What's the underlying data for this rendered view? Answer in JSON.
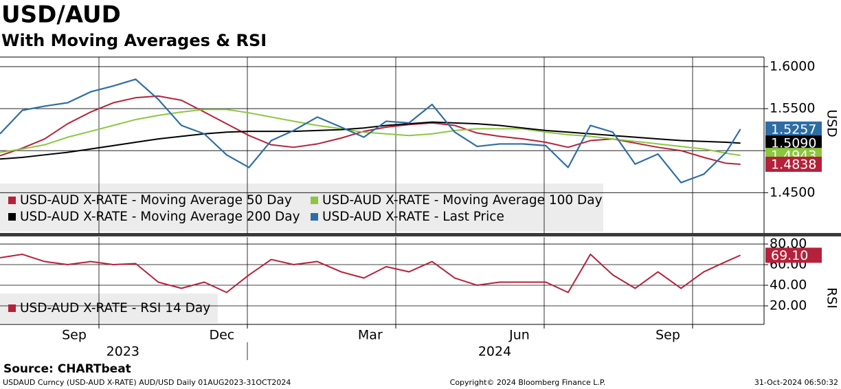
{
  "chart_data": [
    {
      "type": "line",
      "title": "USD/AUD",
      "subtitle": "With Moving Averages & RSI",
      "y_label": "USD",
      "x": [
        "2023-08-01",
        "2023-08-15",
        "2023-08-29",
        "2023-09-12",
        "2023-09-26",
        "2023-10-10",
        "2023-10-24",
        "2023-11-07",
        "2023-11-21",
        "2023-12-05",
        "2023-12-19",
        "2024-01-02",
        "2024-01-16",
        "2024-01-30",
        "2024-02-13",
        "2024-02-27",
        "2024-03-12",
        "2024-03-26",
        "2024-04-09",
        "2024-04-23",
        "2024-05-07",
        "2024-05-21",
        "2024-06-04",
        "2024-06-18",
        "2024-07-02",
        "2024-07-16",
        "2024-07-30",
        "2024-08-13",
        "2024-08-27",
        "2024-09-10",
        "2024-09-24",
        "2024-10-08",
        "2024-10-22",
        "2024-10-31"
      ],
      "series": [
        {
          "name": "USD-AUD X-RATE - Moving Average 50 Day",
          "color": "#b5213a",
          "values": [
            1.494,
            1.503,
            1.514,
            1.532,
            1.546,
            1.557,
            1.563,
            1.565,
            1.56,
            1.546,
            1.532,
            1.518,
            1.507,
            1.504,
            1.508,
            1.515,
            1.523,
            1.528,
            1.531,
            1.533,
            1.53,
            1.521,
            1.517,
            1.514,
            1.51,
            1.504,
            1.512,
            1.514,
            1.509,
            1.504,
            1.5,
            1.492,
            1.485,
            1.4838
          ],
          "value_labels": [
            null,
            null,
            null,
            null,
            null,
            null,
            null,
            null,
            null,
            null,
            null,
            null,
            null,
            null,
            null,
            null,
            null,
            null,
            null,
            null,
            null,
            null,
            null,
            null,
            null,
            null,
            null,
            null,
            null,
            null,
            null,
            null,
            null,
            "1.4838"
          ]
        },
        {
          "name": "USD-AUD X-RATE - Moving Average 100 Day",
          "color": "#8cc63f",
          "values": [
            1.498,
            1.502,
            1.507,
            1.516,
            1.523,
            1.53,
            1.537,
            1.542,
            1.546,
            1.549,
            1.549,
            1.545,
            1.54,
            1.535,
            1.53,
            1.526,
            1.522,
            1.52,
            1.518,
            1.52,
            1.524,
            1.526,
            1.526,
            1.526,
            1.522,
            1.519,
            1.517,
            1.514,
            1.511,
            1.508,
            1.505,
            1.502,
            1.497,
            1.4943
          ],
          "value_labels": [
            null,
            null,
            null,
            null,
            null,
            null,
            null,
            null,
            null,
            null,
            null,
            null,
            null,
            null,
            null,
            null,
            null,
            null,
            null,
            null,
            null,
            null,
            null,
            null,
            null,
            null,
            null,
            null,
            null,
            null,
            null,
            null,
            null,
            "1.4943"
          ]
        },
        {
          "name": "USD-AUD X-RATE - Moving Average 200 Day",
          "color": "#000000",
          "values": [
            1.49,
            1.492,
            1.495,
            1.498,
            1.502,
            1.506,
            1.51,
            1.514,
            1.517,
            1.52,
            1.522,
            1.523,
            1.523,
            1.523,
            1.524,
            1.525,
            1.527,
            1.53,
            1.532,
            1.534,
            1.533,
            1.532,
            1.53,
            1.527,
            1.524,
            1.522,
            1.52,
            1.518,
            1.516,
            1.514,
            1.512,
            1.511,
            1.51,
            1.509
          ],
          "value_labels": [
            null,
            null,
            null,
            null,
            null,
            null,
            null,
            null,
            null,
            null,
            null,
            null,
            null,
            null,
            null,
            null,
            null,
            null,
            null,
            null,
            null,
            null,
            null,
            null,
            null,
            null,
            null,
            null,
            null,
            null,
            null,
            null,
            null,
            "1.5090"
          ]
        },
        {
          "name": "USD-AUD X-RATE - Last Price",
          "color": "#2e6da4",
          "values": [
            1.52,
            1.548,
            1.553,
            1.557,
            1.57,
            1.577,
            1.585,
            1.561,
            1.53,
            1.52,
            1.495,
            1.48,
            1.512,
            1.524,
            1.54,
            1.528,
            1.516,
            1.535,
            1.533,
            1.555,
            1.522,
            1.505,
            1.508,
            1.508,
            1.506,
            1.48,
            1.53,
            1.522,
            1.484,
            1.496,
            1.462,
            1.472,
            1.498,
            1.5257
          ],
          "value_labels": [
            null,
            null,
            null,
            null,
            null,
            null,
            null,
            null,
            null,
            null,
            null,
            null,
            null,
            null,
            null,
            null,
            null,
            null,
            null,
            null,
            null,
            null,
            null,
            null,
            null,
            null,
            null,
            null,
            null,
            null,
            null,
            null,
            null,
            "1.5257"
          ]
        }
      ],
      "ylim": [
        1.4012,
        1.6114
      ],
      "yticks": [
        {
          "value": 1.45,
          "label": "1.4500"
        },
        {
          "value": 1.5,
          "label": "1.5000"
        },
        {
          "value": 1.55,
          "label": "1.5500"
        },
        {
          "value": 1.6,
          "label": "1.6000"
        }
      ],
      "grid": true
    },
    {
      "type": "line",
      "y_label": "RSI",
      "x": [
        "2023-08-01",
        "2023-08-15",
        "2023-08-29",
        "2023-09-12",
        "2023-09-26",
        "2023-10-10",
        "2023-10-24",
        "2023-11-07",
        "2023-11-21",
        "2023-12-05",
        "2023-12-19",
        "2024-01-02",
        "2024-01-16",
        "2024-01-30",
        "2024-02-13",
        "2024-02-27",
        "2024-03-12",
        "2024-03-26",
        "2024-04-09",
        "2024-04-23",
        "2024-05-07",
        "2024-05-21",
        "2024-06-04",
        "2024-06-18",
        "2024-07-02",
        "2024-07-16",
        "2024-07-30",
        "2024-08-13",
        "2024-08-27",
        "2024-09-10",
        "2024-09-24",
        "2024-10-08",
        "2024-10-22",
        "2024-10-31"
      ],
      "series": [
        {
          "name": "USD-AUD X-RATE - RSI 14 Day",
          "color": "#b5213a",
          "values": [
            66.7,
            70,
            63,
            60,
            63,
            60,
            61,
            43,
            37,
            43,
            33,
            50,
            65,
            60,
            63,
            53,
            47,
            58,
            53,
            63,
            47,
            40,
            43,
            43,
            43,
            33,
            70,
            50,
            37,
            53,
            37,
            53,
            63,
            69.1
          ],
          "value_labels": [
            null,
            null,
            null,
            null,
            null,
            null,
            null,
            null,
            null,
            null,
            null,
            null,
            null,
            null,
            null,
            null,
            null,
            null,
            null,
            null,
            null,
            null,
            null,
            null,
            null,
            null,
            null,
            null,
            null,
            null,
            null,
            null,
            null,
            "69.10"
          ]
        }
      ],
      "ylim": [
        2,
        86.7
      ],
      "yticks": [
        {
          "value": 20,
          "label": "20.00"
        },
        {
          "value": 40,
          "label": "40.00"
        },
        {
          "value": 60,
          "label": "60.00"
        },
        {
          "value": 80,
          "label": "80.00"
        }
      ],
      "grid": true
    }
  ],
  "x_axis": {
    "xticks": [
      {
        "value": "2023-09-16",
        "label": "Sep"
      },
      {
        "value": "2023-12-16",
        "label": "Dec"
      },
      {
        "value": "2024-03-16",
        "label": "Mar"
      },
      {
        "value": "2024-06-16",
        "label": "Jun"
      },
      {
        "value": "2024-09-16",
        "label": "Sep"
      }
    ],
    "xgrid": [
      "2023-10-01",
      "2024-01-01",
      "2024-04-01",
      "2024-07-01",
      "2024-10-01"
    ],
    "years": [
      {
        "value": "2023-10-16",
        "label": "2023"
      },
      {
        "value": "2024-06-01",
        "label": "2024"
      }
    ],
    "year_break": "2024-01-01"
  },
  "footer": {
    "source": "Source: CHARTbeat",
    "left": "USDAUD Curncy (USD-AUD X-RATE) AUD/USD  Daily 01AUG2023-31OCT2024",
    "center": "Copyright© 2024 Bloomberg Finance L.P.",
    "right": "31-Oct-2024 06:50:32"
  }
}
